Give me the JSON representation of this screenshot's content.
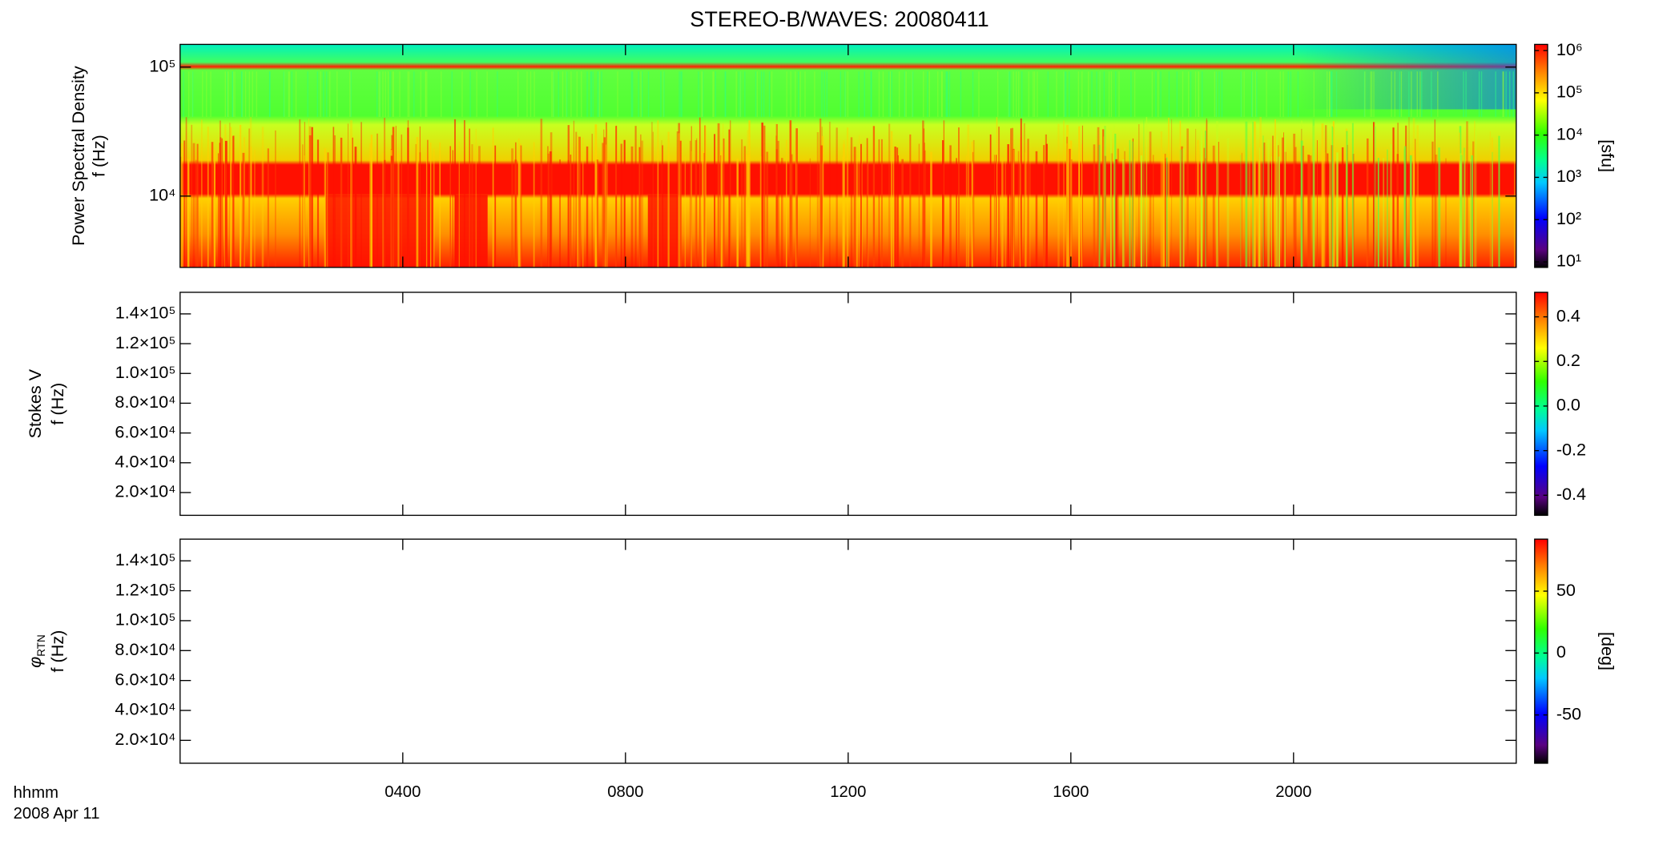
{
  "title": "STEREO-B/WAVES: 20080411",
  "x_axis": {
    "label": [
      "hhmm",
      "2008 Apr 11"
    ],
    "xlim": [
      0,
      24
    ],
    "xticks": [
      {
        "value": 4,
        "label": "0400"
      },
      {
        "value": 8,
        "label": "0800"
      },
      {
        "value": 12,
        "label": "1200"
      },
      {
        "value": 16,
        "label": "1600"
      },
      {
        "value": 20,
        "label": "2000"
      }
    ]
  },
  "chart_data": [
    {
      "type": "heatmap",
      "ylabel": [
        "Power Spectral Density",
        "f (Hz)"
      ],
      "log_y": true,
      "ylim": [
        2800,
        150000
      ],
      "yticks": [
        {
          "value": 10000,
          "label": "10⁴"
        },
        {
          "value": 100000,
          "label": "10⁵"
        }
      ],
      "colorbar": {
        "label": "[sfu]",
        "log": true,
        "zlim": [
          7.4,
          1400000
        ],
        "zticks": [
          {
            "value": 10,
            "label": "10¹"
          },
          {
            "value": 100,
            "label": "10²"
          },
          {
            "value": 1000,
            "label": "10³"
          },
          {
            "value": 10000,
            "label": "10⁴"
          },
          {
            "value": 100000,
            "label": "10⁵"
          },
          {
            "value": 1000000,
            "label": "10⁶"
          }
        ]
      }
    },
    {
      "type": "heatmap",
      "ylabel": [
        "Stokes V",
        "f (Hz)"
      ],
      "log_y": false,
      "ylim": [
        4700,
        154500
      ],
      "yticks": [
        {
          "value": 20000,
          "label": "2.0×10⁴"
        },
        {
          "value": 40000,
          "label": "4.0×10⁴"
        },
        {
          "value": 60000,
          "label": "6.0×10⁴"
        },
        {
          "value": 80000,
          "label": "8.0×10⁴"
        },
        {
          "value": 100000,
          "label": "1.0×10⁵"
        },
        {
          "value": 120000,
          "label": "1.2×10⁵"
        },
        {
          "value": 140000,
          "label": "1.4×10⁵"
        }
      ],
      "colorbar": {
        "log": false,
        "zlim": [
          -0.49,
          0.51
        ],
        "zticks": [
          {
            "value": -0.4,
            "label": "-0.4"
          },
          {
            "value": -0.2,
            "label": "-0.2"
          },
          {
            "value": 0,
            "label": "0.0"
          },
          {
            "value": 0.2,
            "label": "0.2"
          },
          {
            "value": 0.4,
            "label": "0.4"
          }
        ]
      }
    },
    {
      "type": "heatmap",
      "ylabel": [
        {
          "symbol": "φ",
          "subscript": "RTN"
        },
        "f (Hz)"
      ],
      "log_y": false,
      "ylim": [
        4700,
        154500
      ],
      "yticks": [
        {
          "value": 20000,
          "label": "2.0×10⁴"
        },
        {
          "value": 40000,
          "label": "4.0×10⁴"
        },
        {
          "value": 60000,
          "label": "6.0×10⁴"
        },
        {
          "value": 80000,
          "label": "8.0×10⁴"
        },
        {
          "value": 100000,
          "label": "1.0×10⁵"
        },
        {
          "value": 120000,
          "label": "1.2×10⁵"
        },
        {
          "value": 140000,
          "label": "1.4×10⁵"
        }
      ],
      "colorbar": {
        "label": "[deg]",
        "log": false,
        "zlim": [
          -89,
          92
        ],
        "zticks": [
          -50,
          0,
          50
        ]
      }
    }
  ]
}
